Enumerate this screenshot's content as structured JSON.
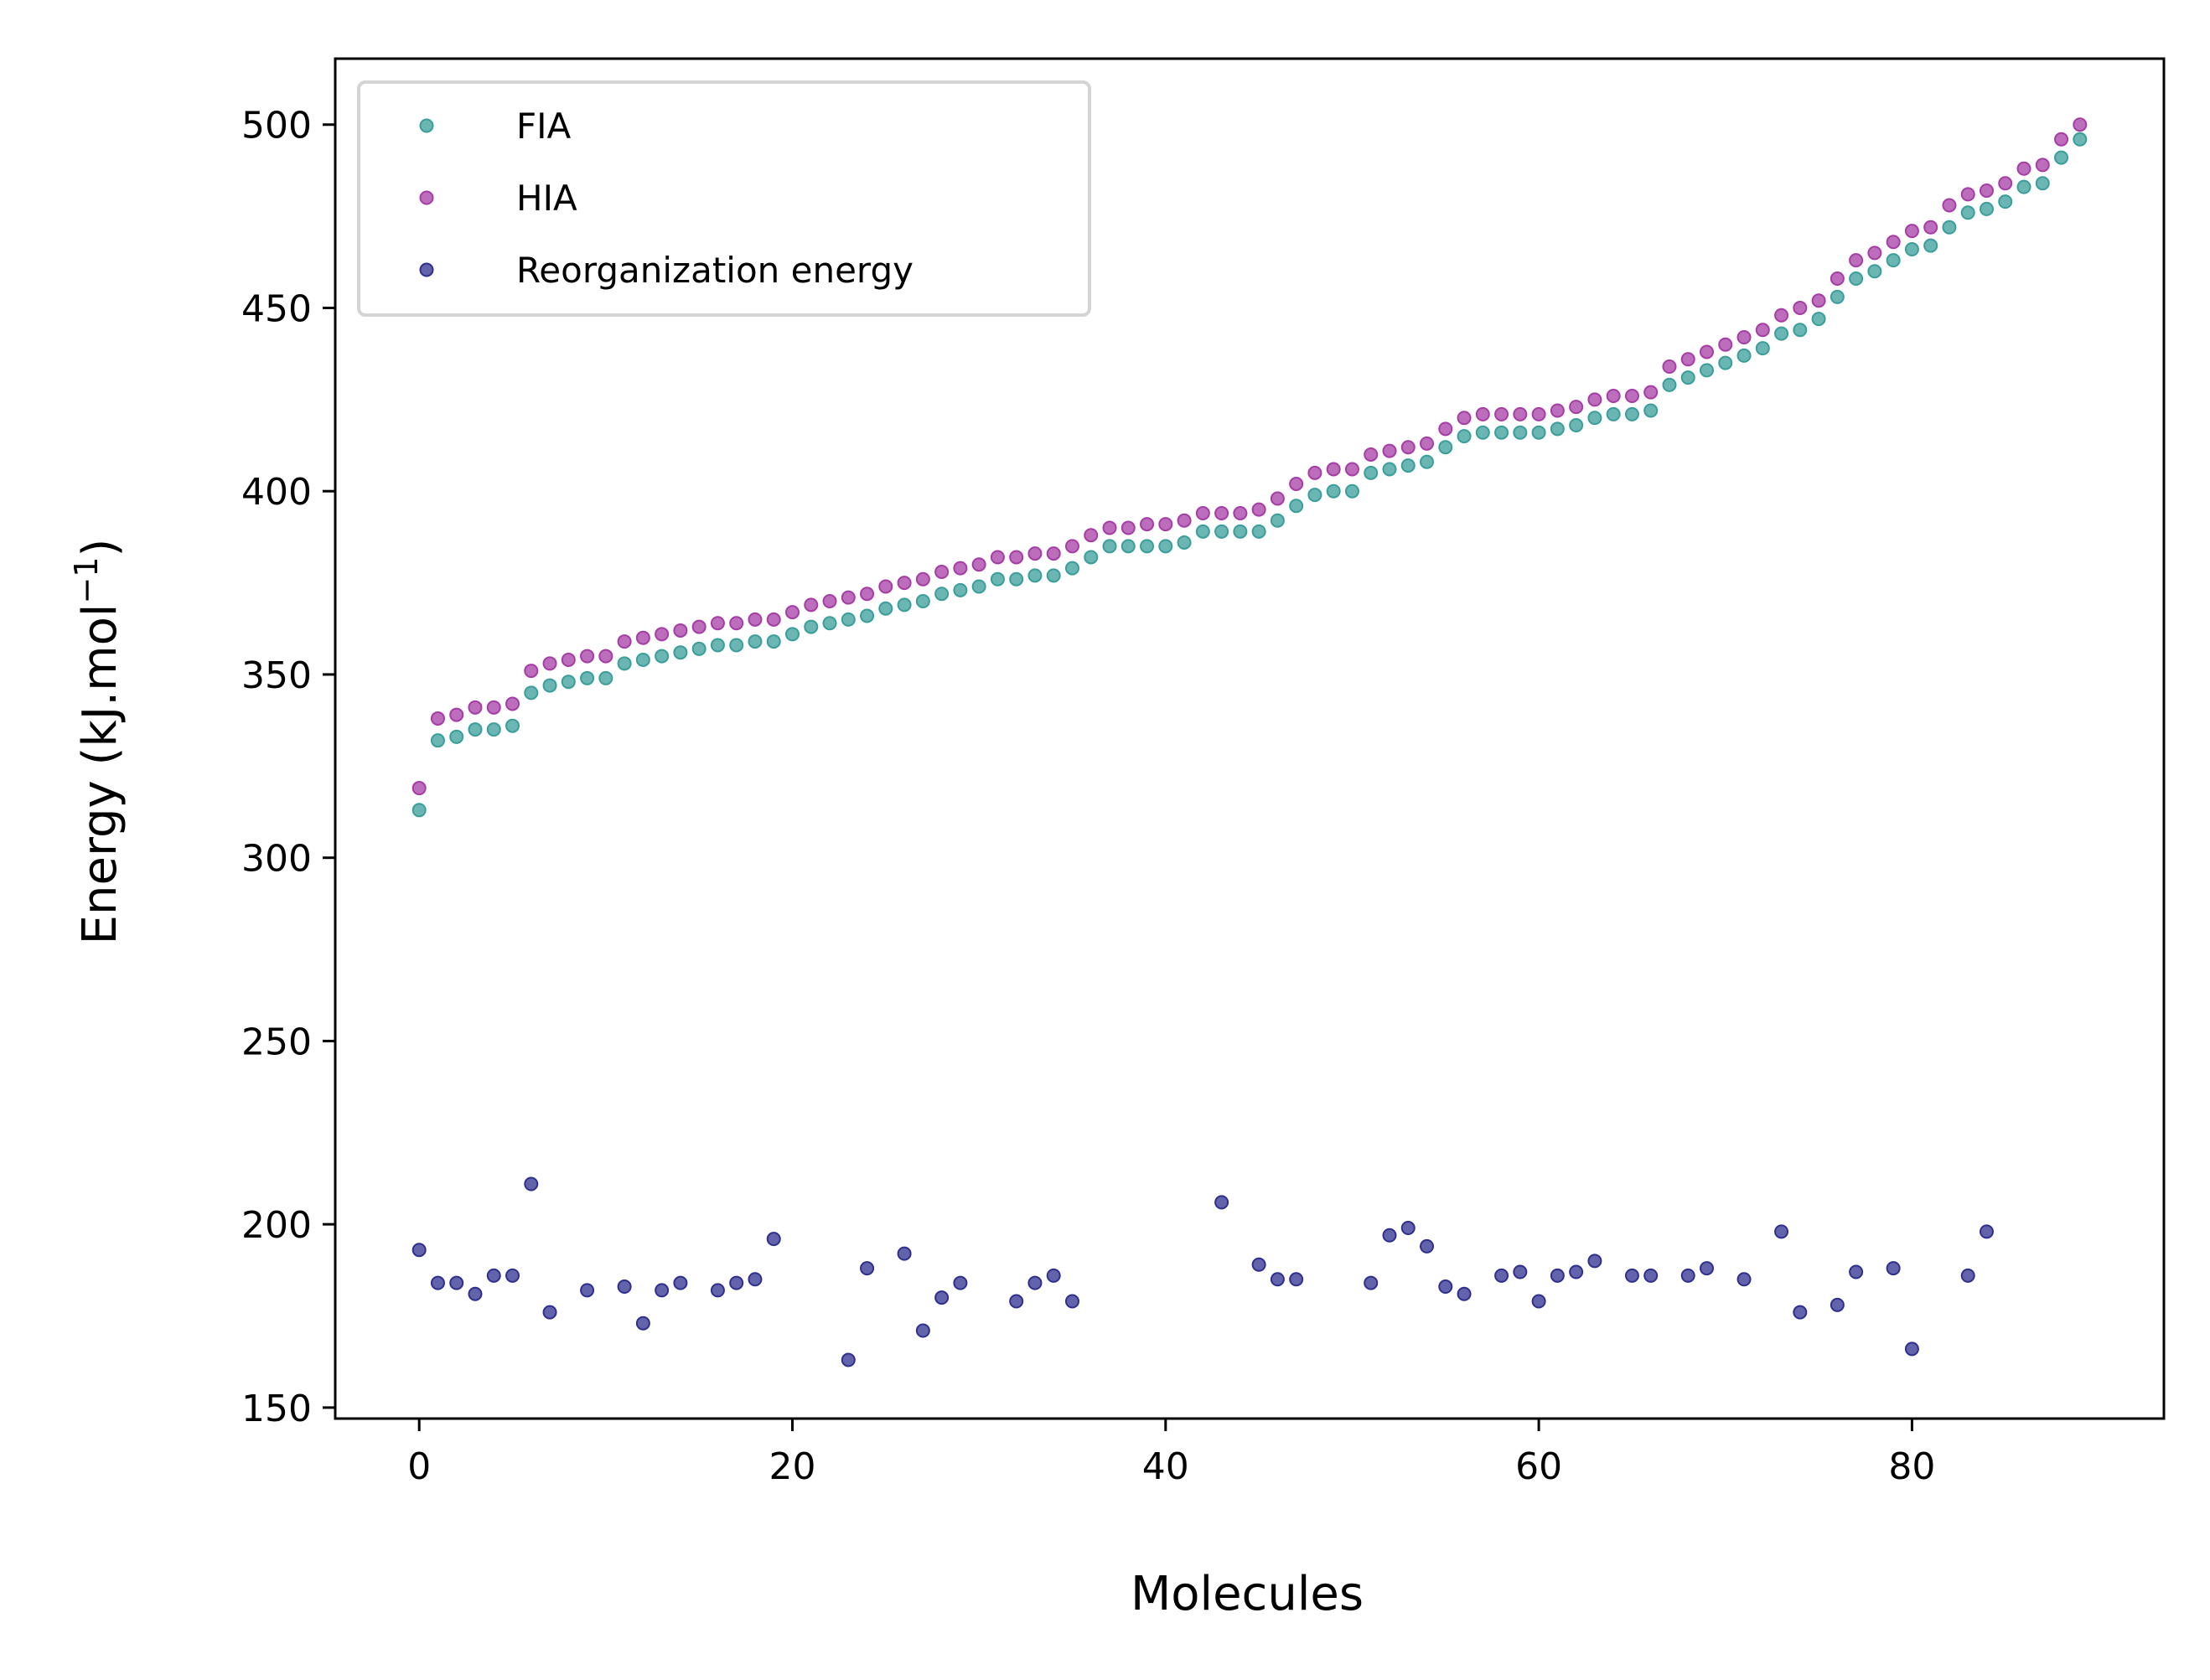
{
  "chart_data": {
    "type": "scatter",
    "xlabel": "Molecules",
    "ylabel": "Energy (kJ.mol",
    "ylabel_unit_sup": "−1",
    "xlim": [
      -4.5,
      93.5
    ],
    "ylim": [
      147,
      518
    ],
    "xticks": [
      0,
      20,
      40,
      60,
      80
    ],
    "yticks": [
      150,
      200,
      250,
      300,
      350,
      400,
      450,
      500
    ],
    "grid": false,
    "legend_position": "top-left",
    "series": [
      {
        "name": "FIA",
        "color": "#3a9e9a",
        "x": [
          0,
          1,
          2,
          3,
          4,
          5,
          6,
          7,
          8,
          9,
          10,
          11,
          12,
          13,
          14,
          15,
          16,
          17,
          18,
          19,
          20,
          21,
          22,
          23,
          24,
          25,
          26,
          27,
          28,
          29,
          30,
          31,
          32,
          33,
          34,
          35,
          36,
          37,
          38,
          39,
          40,
          41,
          42,
          43,
          44,
          45,
          46,
          47,
          48,
          49,
          50,
          51,
          52,
          53,
          54,
          55,
          56,
          57,
          58,
          59,
          60,
          61,
          62,
          63,
          64,
          65,
          66,
          67,
          68,
          69,
          70,
          71,
          72,
          73,
          74,
          75,
          76,
          77,
          78,
          79,
          80,
          81,
          82,
          83,
          84,
          85,
          86,
          87,
          88,
          89
        ],
        "y": [
          313,
          332,
          333,
          335,
          335,
          336,
          345,
          347,
          348,
          349,
          349,
          353,
          354,
          355,
          356,
          357,
          358,
          358,
          359,
          359,
          361,
          363,
          364,
          365,
          366,
          368,
          369,
          370,
          372,
          373,
          374,
          376,
          376,
          377,
          377,
          379,
          382,
          385,
          385,
          385,
          385,
          386,
          389,
          389,
          389,
          389,
          392,
          396,
          399,
          400,
          400,
          405,
          406,
          407,
          408,
          412,
          415,
          416,
          416,
          416,
          416,
          417,
          418,
          420,
          421,
          421,
          422,
          429,
          431,
          433,
          435,
          437,
          439,
          443,
          444,
          447,
          453,
          458,
          460,
          463,
          466,
          467,
          472,
          476,
          477,
          479,
          483,
          484,
          491,
          496
        ]
      },
      {
        "name": "HIA",
        "color": "#a63da6",
        "x": [
          0,
          1,
          2,
          3,
          4,
          5,
          6,
          7,
          8,
          9,
          10,
          11,
          12,
          13,
          14,
          15,
          16,
          17,
          18,
          19,
          20,
          21,
          22,
          23,
          24,
          25,
          26,
          27,
          28,
          29,
          30,
          31,
          32,
          33,
          34,
          35,
          36,
          37,
          38,
          39,
          40,
          41,
          42,
          43,
          44,
          45,
          46,
          47,
          48,
          49,
          50,
          51,
          52,
          53,
          54,
          55,
          56,
          57,
          58,
          59,
          60,
          61,
          62,
          63,
          64,
          65,
          66,
          67,
          68,
          69,
          70,
          71,
          72,
          73,
          74,
          75,
          76,
          77,
          78,
          79,
          80,
          81,
          82,
          83,
          84,
          85,
          86,
          87,
          88,
          89
        ],
        "y": [
          319,
          338,
          339,
          341,
          341,
          342,
          351,
          353,
          354,
          355,
          355,
          359,
          360,
          361,
          362,
          363,
          364,
          364,
          365,
          365,
          367,
          369,
          370,
          371,
          372,
          374,
          375,
          376,
          378,
          379,
          380,
          382,
          382,
          383,
          383,
          385,
          388,
          390,
          390,
          391,
          391,
          392,
          394,
          394,
          394,
          395,
          398,
          402,
          405,
          406,
          406,
          410,
          411,
          412,
          413,
          417,
          420,
          421,
          421,
          421,
          421,
          422,
          423,
          425,
          426,
          426,
          427,
          434,
          436,
          438,
          440,
          442,
          444,
          448,
          450,
          452,
          458,
          463,
          465,
          468,
          471,
          472,
          478,
          481,
          482,
          484,
          488,
          489,
          496,
          500
        ]
      },
      {
        "name": "Reorganization energy",
        "color": "#2f2f8f",
        "x": [
          0,
          1,
          2,
          3,
          4,
          5,
          6,
          7,
          9,
          11,
          12,
          13,
          14,
          16,
          17,
          18,
          19,
          23,
          24,
          26,
          27,
          28,
          29,
          32,
          33,
          34,
          35,
          43,
          45,
          46,
          47,
          51,
          52,
          53,
          54,
          55,
          56,
          58,
          59,
          60,
          61,
          62,
          63,
          65,
          66,
          68,
          69,
          71,
          73,
          74,
          76,
          77,
          79,
          80,
          83,
          84
        ],
        "y": [
          193,
          184,
          184,
          181,
          186,
          186,
          211,
          176,
          182,
          183,
          173,
          182,
          184,
          182,
          184,
          185,
          196,
          163,
          188,
          192,
          171,
          180,
          184,
          179,
          184,
          186,
          179,
          206,
          189,
          185,
          185,
          184,
          197,
          199,
          194,
          183,
          181,
          186,
          187,
          179,
          186,
          187,
          190,
          186,
          186,
          186,
          188,
          185,
          198,
          176,
          178,
          187,
          188,
          166,
          186,
          198
        ]
      }
    ]
  }
}
